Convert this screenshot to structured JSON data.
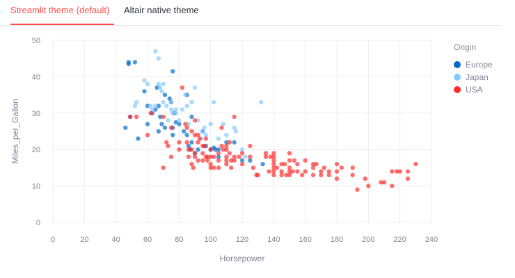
{
  "tabs": [
    {
      "label": "Streamlit theme (default)",
      "active": true
    },
    {
      "label": "Altair native theme",
      "active": false
    }
  ],
  "chart_data": {
    "type": "scatter",
    "xlabel": "Horsepower",
    "ylabel": "Miles_per_Gallon",
    "xlim": [
      0,
      240
    ],
    "ylim": [
      0,
      50
    ],
    "xticks": [
      0,
      20,
      40,
      60,
      80,
      100,
      120,
      140,
      160,
      180,
      200,
      220,
      240
    ],
    "yticks": [
      0,
      10,
      20,
      30,
      40,
      50
    ],
    "grid": true,
    "legend": {
      "title": "Origin",
      "position": "right"
    },
    "series": [
      {
        "name": "Europe",
        "color": "#0068c9",
        "points": [
          [
            46,
            26
          ],
          [
            48,
            44
          ],
          [
            48,
            43.5
          ],
          [
            49,
            29
          ],
          [
            52,
            44
          ],
          [
            54,
            23
          ],
          [
            58,
            36
          ],
          [
            60,
            27
          ],
          [
            63,
            30
          ],
          [
            65,
            31
          ],
          [
            66,
            37
          ],
          [
            67,
            25
          ],
          [
            68,
            29
          ],
          [
            69,
            27
          ],
          [
            71,
            26
          ],
          [
            71,
            35
          ],
          [
            74,
            34
          ],
          [
            75,
            33
          ],
          [
            76,
            41.5
          ],
          [
            76,
            26
          ],
          [
            76,
            24
          ],
          [
            77,
            30
          ],
          [
            78,
            27.5
          ],
          [
            80,
            27
          ],
          [
            83,
            25
          ],
          [
            85,
            24
          ],
          [
            86,
            21
          ],
          [
            87,
            20
          ],
          [
            88,
            29
          ],
          [
            88,
            22
          ],
          [
            90,
            19
          ],
          [
            92,
            20
          ],
          [
            95,
            25
          ],
          [
            97,
            21
          ],
          [
            100,
            20
          ],
          [
            102,
            20.5
          ],
          [
            103,
            20
          ],
          [
            105,
            20
          ],
          [
            105,
            18
          ],
          [
            110,
            22
          ],
          [
            115,
            22
          ],
          [
            120,
            17
          ],
          [
            125,
            17
          ],
          [
            133,
            16
          ],
          [
            85,
            35
          ],
          [
            67,
            32
          ],
          [
            60,
            32
          ]
        ]
      },
      {
        "name": "Japan",
        "color": "#83c9ff",
        "points": [
          [
            52,
            32
          ],
          [
            53,
            33
          ],
          [
            58,
            39
          ],
          [
            60,
            38
          ],
          [
            62,
            32
          ],
          [
            63,
            31
          ],
          [
            65,
            47
          ],
          [
            65,
            32
          ],
          [
            67,
            45
          ],
          [
            67,
            38
          ],
          [
            68,
            37
          ],
          [
            69,
            36
          ],
          [
            70,
            38
          ],
          [
            70,
            33
          ],
          [
            72,
            32
          ],
          [
            73,
            28
          ],
          [
            75,
            33
          ],
          [
            75,
            31
          ],
          [
            76,
            30
          ],
          [
            78,
            31
          ],
          [
            80,
            28
          ],
          [
            82,
            31
          ],
          [
            84,
            35
          ],
          [
            86,
            27
          ],
          [
            88,
            33
          ],
          [
            90,
            37
          ],
          [
            92,
            28
          ],
          [
            94,
            23
          ],
          [
            95,
            25
          ],
          [
            96,
            26
          ],
          [
            97,
            24
          ],
          [
            100,
            27
          ],
          [
            102,
            33
          ],
          [
            105,
            23
          ],
          [
            108,
            27
          ],
          [
            110,
            24
          ],
          [
            115,
            26
          ],
          [
            116,
            25
          ],
          [
            120,
            20
          ],
          [
            122,
            18
          ],
          [
            132,
            33
          ],
          [
            78,
            30
          ],
          [
            85,
            32
          ]
        ]
      },
      {
        "name": "USA",
        "color": "#ff2b2b",
        "points": [
          [
            49,
            29
          ],
          [
            53,
            29
          ],
          [
            60,
            24
          ],
          [
            62,
            30
          ],
          [
            70,
            29
          ],
          [
            70,
            15
          ],
          [
            72,
            22
          ],
          [
            73,
            21
          ],
          [
            75,
            26
          ],
          [
            75,
            18
          ],
          [
            80,
            20
          ],
          [
            80,
            22
          ],
          [
            82,
            37
          ],
          [
            84,
            27
          ],
          [
            85,
            26
          ],
          [
            86,
            20
          ],
          [
            86,
            18
          ],
          [
            88,
            25
          ],
          [
            88,
            16
          ],
          [
            89,
            15
          ],
          [
            90,
            28
          ],
          [
            90,
            24
          ],
          [
            90,
            18
          ],
          [
            90,
            19
          ],
          [
            92,
            22
          ],
          [
            93,
            23
          ],
          [
            95,
            17
          ],
          [
            95,
            19
          ],
          [
            96,
            21
          ],
          [
            97,
            23
          ],
          [
            98,
            18
          ],
          [
            100,
            20
          ],
          [
            100,
            18
          ],
          [
            100,
            16
          ],
          [
            100,
            15
          ],
          [
            105,
            19
          ],
          [
            105,
            17
          ],
          [
            105,
            15
          ],
          [
            107,
            21
          ],
          [
            107,
            26
          ],
          [
            110,
            20
          ],
          [
            110,
            18
          ],
          [
            110,
            17
          ],
          [
            110,
            16
          ],
          [
            112,
            22
          ],
          [
            112,
            19
          ],
          [
            113,
            15
          ],
          [
            115,
            18
          ],
          [
            115,
            17
          ],
          [
            115,
            29
          ],
          [
            120,
            19
          ],
          [
            120,
            16
          ],
          [
            125,
            21
          ],
          [
            125,
            18
          ],
          [
            129,
            13
          ],
          [
            130,
            13
          ],
          [
            135,
            19
          ],
          [
            135,
            18
          ],
          [
            137,
            14
          ],
          [
            140,
            19
          ],
          [
            140,
            18
          ],
          [
            140,
            17
          ],
          [
            140,
            16
          ],
          [
            140,
            15
          ],
          [
            140,
            14
          ],
          [
            140,
            13
          ],
          [
            142,
            15
          ],
          [
            145,
            16
          ],
          [
            145,
            14
          ],
          [
            147,
            16
          ],
          [
            148,
            13
          ],
          [
            150,
            19
          ],
          [
            150,
            17
          ],
          [
            150,
            15
          ],
          [
            150,
            14
          ],
          [
            150,
            13
          ],
          [
            152,
            14
          ],
          [
            153,
            17
          ],
          [
            155,
            14
          ],
          [
            158,
            13
          ],
          [
            160,
            14
          ],
          [
            165,
            16
          ],
          [
            165,
            15
          ],
          [
            165,
            13
          ],
          [
            167,
            16
          ],
          [
            170,
            14
          ],
          [
            170,
            13
          ],
          [
            175,
            14
          ],
          [
            175,
            13
          ],
          [
            180,
            16
          ],
          [
            180,
            14
          ],
          [
            180,
            12
          ],
          [
            190,
            15
          ],
          [
            190,
            13
          ],
          [
            193,
            9
          ],
          [
            198,
            12
          ],
          [
            200,
            10
          ],
          [
            208,
            11
          ],
          [
            210,
            11
          ],
          [
            215,
            14
          ],
          [
            215,
            10
          ],
          [
            218,
            14
          ],
          [
            220,
            14
          ],
          [
            225,
            14
          ],
          [
            225,
            12
          ],
          [
            230,
            16
          ],
          [
            85,
            22
          ],
          [
            88,
            20
          ],
          [
            92,
            24
          ],
          [
            95,
            21
          ],
          [
            98,
            17
          ],
          [
            102,
            18
          ],
          [
            102,
            15
          ],
          [
            108,
            20
          ],
          [
            113,
            17
          ],
          [
            118,
            18
          ],
          [
            127,
            15
          ],
          [
            138,
            18
          ],
          [
            145,
            13
          ],
          [
            155,
            16
          ],
          [
            160,
            17
          ],
          [
            172,
            15
          ],
          [
            183,
            15
          ],
          [
            92,
            17
          ],
          [
            97,
            18
          ],
          [
            110,
            21
          ]
        ]
      }
    ]
  }
}
